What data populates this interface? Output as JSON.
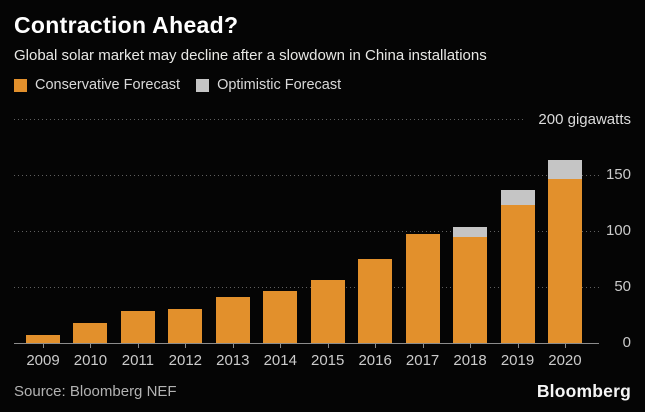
{
  "header": {
    "title": "Contraction Ahead?",
    "subtitle": "Global solar market may decline after a slowdown in China installations"
  },
  "legend": {
    "items": [
      {
        "label": "Conservative Forecast",
        "color": "#E2902C"
      },
      {
        "label": "Optimistic Forecast",
        "color": "#C5C5C5"
      }
    ]
  },
  "chart_data": {
    "type": "bar",
    "stacked": true,
    "title": "Contraction Ahead?",
    "subtitle": "Global solar market may decline after a slowdown in China installations",
    "unit_top_label": "200 gigawatts",
    "ylabel": "gigawatts",
    "ylim": [
      0,
      200
    ],
    "y_ticks": [
      0,
      50,
      100,
      150,
      200
    ],
    "grid": "dotted-horizontal",
    "legend_position": "top-left",
    "categories": [
      "2009",
      "2010",
      "2011",
      "2012",
      "2013",
      "2014",
      "2015",
      "2016",
      "2017",
      "2018",
      "2019",
      "2020"
    ],
    "series": [
      {
        "name": "Conservative Forecast",
        "color": "#E2902C",
        "values": [
          7,
          18,
          29,
          30,
          41,
          46,
          56,
          75,
          97,
          95,
          123,
          146
        ]
      },
      {
        "name": "Optimistic Forecast",
        "color": "#C5C5C5",
        "values": [
          0,
          0,
          0,
          0,
          0,
          0,
          0,
          0,
          0,
          9,
          14,
          17
        ]
      }
    ]
  },
  "footer": {
    "source": "Source: Bloomberg NEF",
    "brand": "Bloomberg"
  }
}
